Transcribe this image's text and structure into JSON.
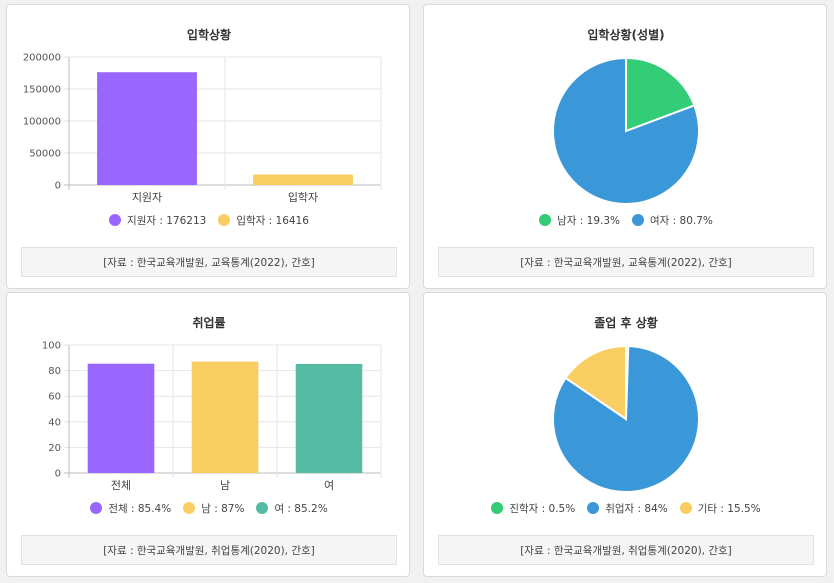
{
  "cards": [
    {
      "chart_data": {
        "type": "bar",
        "title": "입학상황",
        "categories": [
          "지원자",
          "입학자"
        ],
        "values": [
          176213,
          16416
        ],
        "colors": [
          "#9966ff",
          "#f8cd62"
        ],
        "ylim": [
          0,
          200000
        ],
        "yticks": [
          "0",
          "50000",
          "100000",
          "150000",
          "200000"
        ],
        "grid": true
      },
      "legend": [
        {
          "label": "지원자 : 176213",
          "color": "#9966ff"
        },
        {
          "label": "입학자 : 16416",
          "color": "#f8cd62"
        }
      ],
      "source": "[자료 : 한국교육개발원, 교육통계(2022), 간호]"
    },
    {
      "chart_data": {
        "type": "pie",
        "title": "입학상황(성별)",
        "categories": [
          "남자",
          "여자"
        ],
        "values": [
          19.3,
          80.7
        ],
        "colors": [
          "#33cc77",
          "#3a98d8"
        ]
      },
      "legend": [
        {
          "label": "남자 : 19.3%",
          "color": "#33cc77"
        },
        {
          "label": "여자 : 80.7%",
          "color": "#3a98d8"
        }
      ],
      "source": "[자료 : 한국교육개발원, 교육통계(2022), 간호]"
    },
    {
      "chart_data": {
        "type": "bar",
        "title": "취업률",
        "categories": [
          "전체",
          "남",
          "여"
        ],
        "values": [
          85.4,
          87,
          85.2
        ],
        "colors": [
          "#9966ff",
          "#f8cd62",
          "#55bba2"
        ],
        "ylim": [
          0,
          100
        ],
        "yticks": [
          "0",
          "20",
          "40",
          "60",
          "80",
          "100"
        ],
        "grid": true
      },
      "legend": [
        {
          "label": "전체 : 85.4%",
          "color": "#9966ff"
        },
        {
          "label": "남 : 87%",
          "color": "#f8cd62"
        },
        {
          "label": "여 : 85.2%",
          "color": "#55bba2"
        }
      ],
      "source": "[자료 : 한국교육개발원, 취업통계(2020), 간호]"
    },
    {
      "chart_data": {
        "type": "pie",
        "title": "졸업 후 상황",
        "categories": [
          "진학자",
          "취업자",
          "기타"
        ],
        "values": [
          0.5,
          84,
          15.5
        ],
        "colors": [
          "#33cc77",
          "#3a98d8",
          "#f8cd62"
        ]
      },
      "legend": [
        {
          "label": "진학자 : 0.5%",
          "color": "#33cc77"
        },
        {
          "label": "취업자 : 84%",
          "color": "#3a98d8"
        },
        {
          "label": "기타 : 15.5%",
          "color": "#f8cd62"
        }
      ],
      "source": "[자료 : 한국교육개발원, 취업통계(2020), 간호]"
    }
  ]
}
